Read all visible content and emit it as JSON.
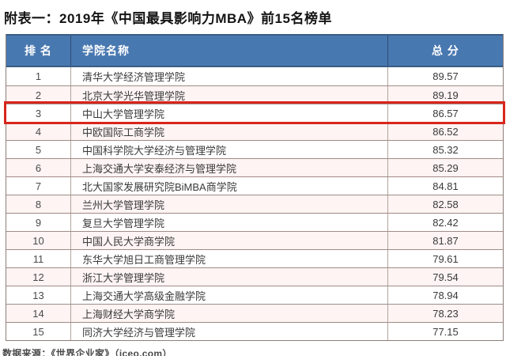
{
  "title": "附表一：2019年《中国最具影响力MBA》前15名榜单",
  "source": "数据来源：《世界企业家》（iceo.com）",
  "colors": {
    "header_bg": "#4878b0",
    "header_text": "#ffffff",
    "row_alt_bg": "#fdf4f3",
    "highlight_border": "#d8251c"
  },
  "table": {
    "columns": {
      "rank": "排 名",
      "school": "学院名称",
      "score": "总 分"
    },
    "highlighted_rank": "3",
    "rows": [
      {
        "rank": "1",
        "school": "清华大学经济管理学院",
        "score": "89.57"
      },
      {
        "rank": "2",
        "school": "北京大学光华管理学院",
        "score": "89.19"
      },
      {
        "rank": "3",
        "school": "中山大学管理学院",
        "score": "86.57"
      },
      {
        "rank": "4",
        "school": "中欧国际工商学院",
        "score": "86.52"
      },
      {
        "rank": "5",
        "school": "中国科学院大学经济与管理学院",
        "score": "85.32"
      },
      {
        "rank": "6",
        "school": "上海交通大学安泰经济与管理学院",
        "score": "85.29"
      },
      {
        "rank": "7",
        "school": "北大国家发展研究院BiMBA商学院",
        "score": "84.81"
      },
      {
        "rank": "8",
        "school": "兰州大学管理学院",
        "score": "82.58"
      },
      {
        "rank": "9",
        "school": "复旦大学管理学院",
        "score": "82.42"
      },
      {
        "rank": "10",
        "school": "中国人民大学商学院",
        "score": "81.87"
      },
      {
        "rank": "11",
        "school": "东华大学旭日工商管理学院",
        "score": "79.61"
      },
      {
        "rank": "12",
        "school": "浙江大学管理学院",
        "score": "79.54"
      },
      {
        "rank": "13",
        "school": "上海交通大学高级金融学院",
        "score": "78.94"
      },
      {
        "rank": "14",
        "school": "上海财经大学商学院",
        "score": "78.23"
      },
      {
        "rank": "15",
        "school": "同济大学经济与管理学院",
        "score": "77.15"
      }
    ]
  },
  "chart_data": {
    "type": "table",
    "title": "附表一：2019年《中国最具影响力MBA》前15名榜单",
    "columns": [
      "排 名",
      "学院名称",
      "总 分"
    ],
    "rows": [
      [
        "1",
        "清华大学经济管理学院",
        "89.57"
      ],
      [
        "2",
        "北京大学光华管理学院",
        "89.19"
      ],
      [
        "3",
        "中山大学管理学院",
        "86.57"
      ],
      [
        "4",
        "中欧国际工商学院",
        "86.52"
      ],
      [
        "5",
        "中国科学院大学经济与管理学院",
        "85.32"
      ],
      [
        "6",
        "上海交通大学安泰经济与管理学院",
        "85.29"
      ],
      [
        "7",
        "北大国家发展研究院BiMBA商学院",
        "84.81"
      ],
      [
        "8",
        "兰州大学管理学院",
        "82.58"
      ],
      [
        "9",
        "复旦大学管理学院",
        "82.42"
      ],
      [
        "10",
        "中国人民大学商学院",
        "81.87"
      ],
      [
        "11",
        "东华大学旭日工商管理学院",
        "79.61"
      ],
      [
        "12",
        "浙江大学管理学院",
        "79.54"
      ],
      [
        "13",
        "上海交通大学高级金融学院",
        "78.94"
      ],
      [
        "14",
        "上海财经大学商学院",
        "78.23"
      ],
      [
        "15",
        "同济大学经济与管理学院",
        "77.15"
      ]
    ],
    "annotations": [
      "第3行（中山大学管理学院）以红色边框突出显示"
    ],
    "source": "数据来源：《世界企业家》（iceo.com）"
  }
}
